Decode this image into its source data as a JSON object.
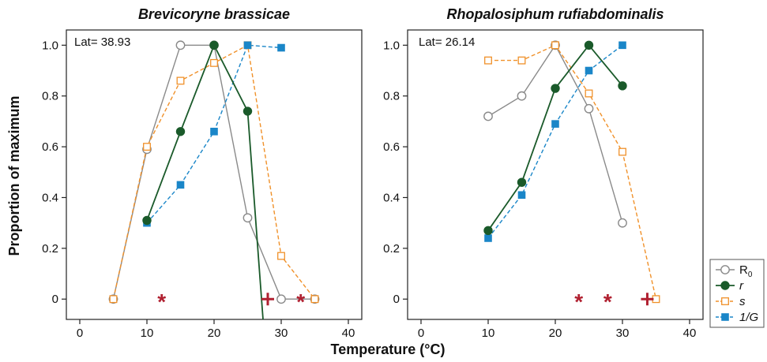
{
  "figure": {
    "ylabel": "Proportion of maximum",
    "xlabel": "Temperature (°C)"
  },
  "legend": {
    "position": "right",
    "entries": [
      {
        "key": "R0",
        "label": "R",
        "sub": "0",
        "marker": "open-circle",
        "color": "#8a8a8a",
        "dash": "solid"
      },
      {
        "key": "r",
        "label": "r",
        "sub": "",
        "marker": "filled-circle",
        "color": "#1a5a2a",
        "dash": "solid"
      },
      {
        "key": "s",
        "label": "s",
        "sub": "",
        "marker": "open-square",
        "color": "#f0912a",
        "dash": "dashed"
      },
      {
        "key": "1/G",
        "label": "1/G",
        "sub": "",
        "marker": "filled-square",
        "color": "#1a86c8",
        "dash": "dashed"
      }
    ]
  },
  "colors": {
    "R0": "#8a8a8a",
    "r": "#1a5a2a",
    "s": "#f0912a",
    "1/G": "#1a86c8",
    "marker_red": "#b02030",
    "axis": "#222222"
  },
  "chart_data": [
    {
      "type": "line",
      "title": "Brevicoryne brassicae",
      "annotation": "Lat= 38.93",
      "xlim": [
        -2,
        42
      ],
      "ylim": [
        -0.08,
        1.06
      ],
      "xticks": [
        0,
        10,
        20,
        30,
        40
      ],
      "yticks": [
        0,
        0.2,
        0.4,
        0.6,
        0.8,
        1.0
      ],
      "ytick_labels": [
        "0",
        "0.2",
        "0.4",
        "0.6",
        "0.8",
        "1.0"
      ],
      "series": [
        {
          "key": "R0",
          "x": [
            5,
            10,
            15,
            20,
            25,
            30,
            35
          ],
          "y": [
            0,
            0.59,
            1.0,
            1.0,
            0.32,
            0,
            0
          ]
        },
        {
          "key": "r",
          "x": [
            10,
            15,
            20,
            25,
            27.3
          ],
          "y": [
            0.31,
            0.66,
            1.0,
            0.74,
            -0.08
          ]
        },
        {
          "key": "s",
          "x": [
            5,
            10,
            15,
            20,
            25,
            30,
            35
          ],
          "y": [
            0,
            0.6,
            0.86,
            0.93,
            1.0,
            0.17,
            0
          ]
        },
        {
          "key": "1/G",
          "x": [
            10,
            15,
            20,
            25,
            30
          ],
          "y": [
            0.3,
            0.45,
            0.66,
            1.0,
            0.99
          ]
        }
      ],
      "asterisks": [
        {
          "x": 12.2,
          "y": 0
        },
        {
          "x": 32.9,
          "y": 0
        }
      ],
      "crosses": [
        {
          "x": 28.0,
          "y": 0
        }
      ]
    },
    {
      "type": "line",
      "title": "Rhopalosiphum rufiabdominalis",
      "annotation": "Lat= 26.14",
      "xlim": [
        -2,
        42
      ],
      "ylim": [
        -0.08,
        1.06
      ],
      "xticks": [
        0,
        10,
        20,
        30,
        40
      ],
      "yticks": [
        0,
        0.2,
        0.4,
        0.6,
        0.8,
        1.0
      ],
      "ytick_labels": [
        "0",
        "0.2",
        "0.4",
        "0.6",
        "0.8",
        "1.0"
      ],
      "series": [
        {
          "key": "R0",
          "x": [
            10,
            15,
            20,
            25,
            30
          ],
          "y": [
            0.72,
            0.8,
            1.0,
            0.75,
            0.3
          ]
        },
        {
          "key": "r",
          "x": [
            10,
            15,
            20,
            25,
            30
          ],
          "y": [
            0.27,
            0.46,
            0.83,
            1.0,
            0.84
          ]
        },
        {
          "key": "s",
          "x": [
            10,
            15,
            20,
            25,
            30,
            35
          ],
          "y": [
            0.94,
            0.94,
            1.0,
            0.81,
            0.58,
            0
          ]
        },
        {
          "key": "1/G",
          "x": [
            10,
            15,
            20,
            25,
            30
          ],
          "y": [
            0.24,
            0.41,
            0.69,
            0.9,
            1.0
          ]
        }
      ],
      "asterisks": [
        {
          "x": 23.5,
          "y": 0
        },
        {
          "x": 27.8,
          "y": 0
        }
      ],
      "crosses": [
        {
          "x": 33.7,
          "y": 0
        }
      ]
    }
  ]
}
